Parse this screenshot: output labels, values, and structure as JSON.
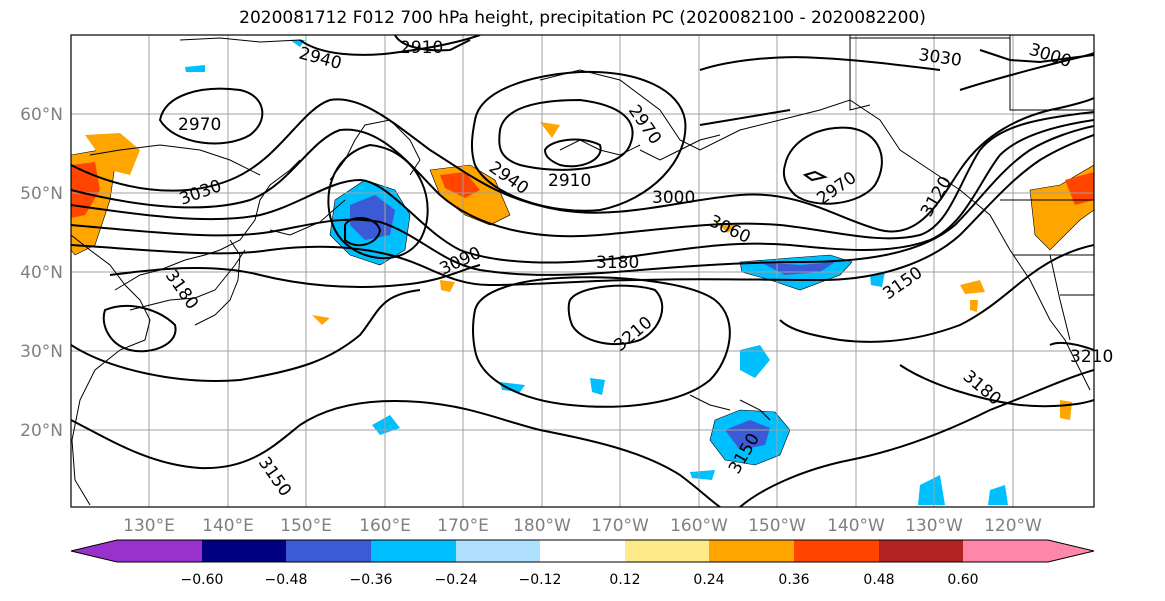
{
  "title": "2020081712 F012 700 hPa height, precipitation PC (2020082100 - 2020082200)",
  "lat_labels": [
    "60°N",
    "50°N",
    "40°N",
    "30°N",
    "20°N"
  ],
  "lon_labels": [
    "130°E",
    "140°E",
    "150°E",
    "160°E",
    "170°E",
    "180°W",
    "170°W",
    "160°W",
    "150°W",
    "140°W",
    "130°W",
    "120°W"
  ],
  "contour_labels": [
    "2910",
    "2940",
    "2970",
    "2970",
    "3030",
    "3030",
    "3000",
    "2910",
    "2940",
    "2970",
    "3000",
    "3060",
    "3090",
    "3120",
    "3150",
    "3150",
    "3180",
    "3180",
    "3180",
    "3210",
    "3150",
    "3210"
  ],
  "colorbar": {
    "ticks": [
      "−0.60",
      "−0.48",
      "−0.36",
      "−0.24",
      "−0.12",
      "0.12",
      "0.24",
      "0.36",
      "0.48",
      "0.60"
    ],
    "colors": [
      "#9932cc",
      "#000080",
      "#3b5bd6",
      "#00bfff",
      "#b0e0ff",
      "#ffffff",
      "#ffea8a",
      "#ffa500",
      "#ff4500",
      "#b22222",
      "#ff88aa"
    ]
  }
}
